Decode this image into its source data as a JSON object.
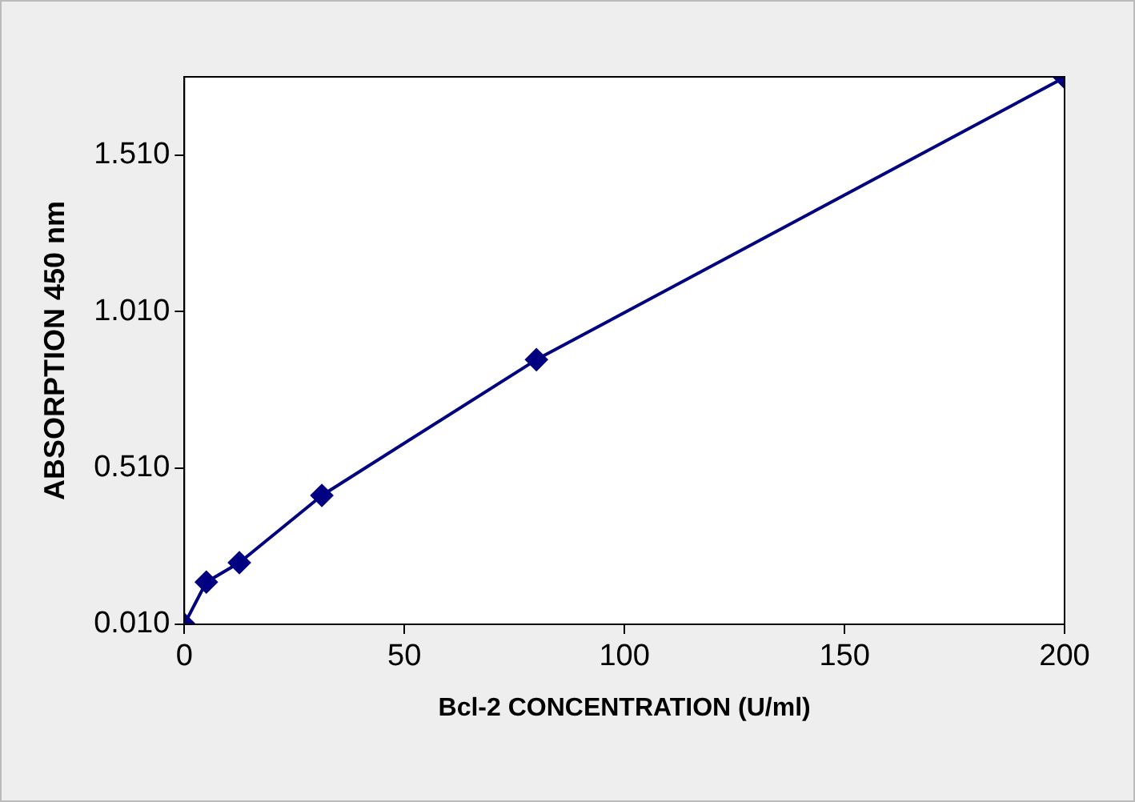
{
  "chart_data": {
    "type": "line",
    "xlabel": "Bcl-2 CONCENTRATION (U/ml)",
    "ylabel": "ABSORPTION 450 nm",
    "x": [
      0,
      5,
      12.5,
      31.25,
      80,
      200
    ],
    "series": [
      {
        "color": "#000080",
        "values": [
          0.01,
          0.145,
          0.207,
          0.422,
          0.856,
          1.758
        ]
      }
    ],
    "xlim": [
      0,
      200
    ],
    "xticks": [
      0,
      50,
      100,
      150,
      200
    ],
    "ylim": [
      0.01,
      1.76
    ],
    "yticks": [
      {
        "value": 0.01,
        "label": "0.010"
      },
      {
        "value": 0.51,
        "label": "0.510"
      },
      {
        "value": 1.01,
        "label": "1.010"
      },
      {
        "value": 1.51,
        "label": "1.510"
      }
    ],
    "grid": false,
    "legend": false,
    "marker": "diamond",
    "line_style": "solid"
  }
}
